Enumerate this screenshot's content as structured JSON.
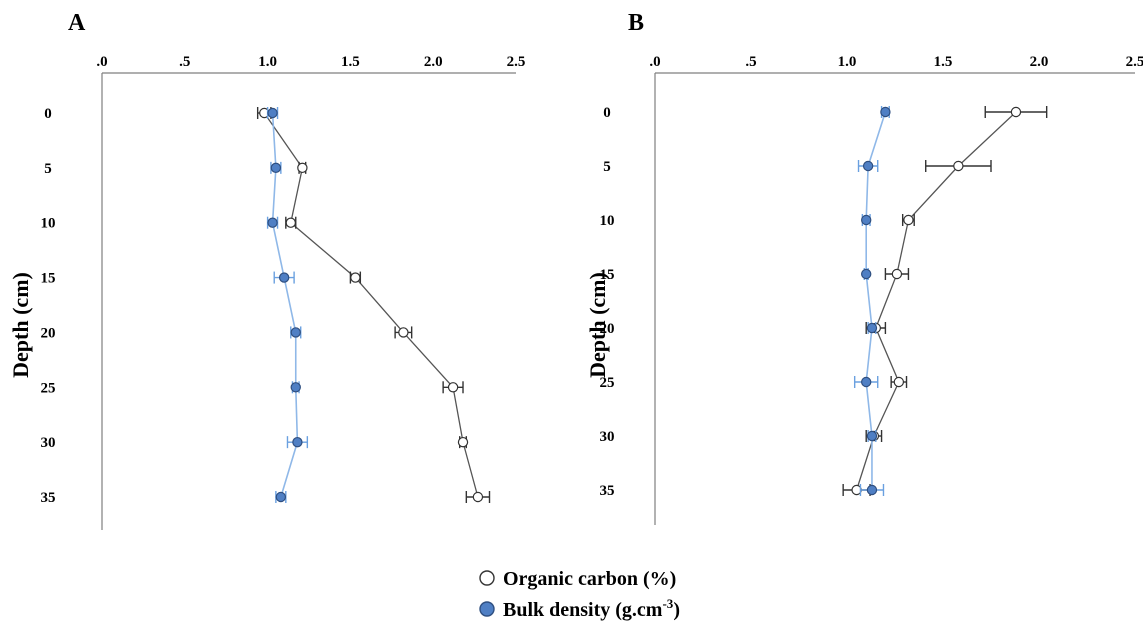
{
  "legend": {
    "oc_label": "Organic carbon (%)",
    "bd_label_main": "Bulk density (g.cm",
    "bd_label_sup": "-3",
    "bd_label_end": ")"
  },
  "colors": {
    "oc_marker": "#ffffff",
    "oc_line": "#555555",
    "bd_marker": "#4f7fc4",
    "bd_line": "#8fb8e8",
    "bd_error": "#6aa0e0",
    "oc_error": "#333333"
  },
  "chart_data": [
    {
      "panel": "A",
      "type": "line",
      "orientation": "depth-profile",
      "x_ticks": [
        ".0",
        ".5",
        "1.0",
        "1.5",
        "2.0",
        "2.5"
      ],
      "xlim": [
        0,
        2.5
      ],
      "y_ticks": [
        "0",
        "5",
        "10",
        "15",
        "20",
        "25",
        "30",
        "35"
      ],
      "ylim": [
        0,
        35
      ],
      "ylabel": "Depth (cm)",
      "depth": [
        0,
        5,
        10,
        15,
        20,
        25,
        30,
        35
      ],
      "series": [
        {
          "name": "Organic carbon (%)",
          "values": [
            0.98,
            1.21,
            1.14,
            1.53,
            1.82,
            2.12,
            2.18,
            2.27
          ],
          "errors": [
            0.04,
            0.02,
            0.03,
            0.03,
            0.05,
            0.06,
            0.02,
            0.07
          ]
        },
        {
          "name": "Bulk density (g.cm-3)",
          "values": [
            1.03,
            1.05,
            1.03,
            1.1,
            1.17,
            1.17,
            1.18,
            1.08
          ],
          "errors": [
            0.03,
            0.03,
            0.03,
            0.06,
            0.03,
            0.02,
            0.06,
            0.03
          ]
        }
      ]
    },
    {
      "panel": "B",
      "type": "line",
      "orientation": "depth-profile",
      "x_ticks": [
        ".0",
        ".5",
        "1.0",
        "1.5",
        "2.0",
        "2.5"
      ],
      "xlim": [
        0,
        2.5
      ],
      "y_ticks": [
        "0",
        "5",
        "10",
        "15",
        "20",
        "25",
        "30",
        "35"
      ],
      "ylim": [
        0,
        35
      ],
      "ylabel": "Depth (cm)",
      "depth": [
        0,
        5,
        10,
        15,
        20,
        25,
        30,
        35
      ],
      "series": [
        {
          "name": "Organic carbon (%)",
          "values": [
            1.88,
            1.58,
            1.32,
            1.26,
            1.15,
            1.27,
            1.14,
            1.05
          ],
          "errors": [
            0.16,
            0.17,
            0.03,
            0.06,
            0.05,
            0.04,
            0.04,
            0.07
          ]
        },
        {
          "name": "Bulk density (g.cm-3)",
          "values": [
            1.2,
            1.11,
            1.1,
            1.1,
            1.13,
            1.1,
            1.13,
            1.13
          ],
          "errors": [
            0.02,
            0.05,
            0.02,
            0.01,
            0.02,
            0.06,
            0.02,
            0.06
          ]
        }
      ]
    }
  ]
}
